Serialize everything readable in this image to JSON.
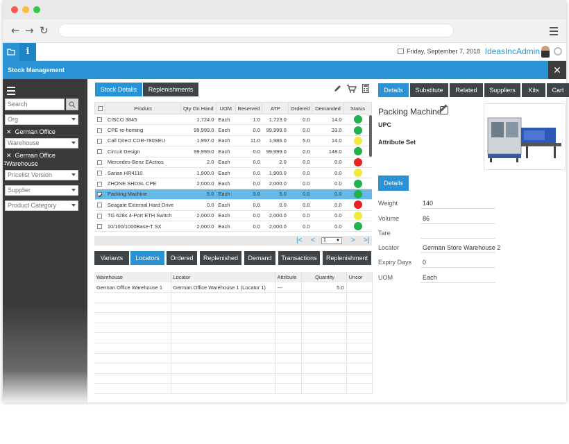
{
  "header": {
    "date": "Friday, September 7, 2018",
    "user": "IdeasIncAdmin",
    "app_tab_info": "i"
  },
  "window_title": "Stock Management",
  "close_label": "✕",
  "sidebar": {
    "search_placeholder": "Search",
    "org_placeholder": "Org",
    "org_selected": "German Office",
    "warehouse_placeholder": "Warehouse",
    "warehouse_selected": "German Office Warehouse",
    "warehouse_count": "1",
    "pricelist_placeholder": "Pricelist Version",
    "supplier_placeholder": "Supplier",
    "category_placeholder": "Product Category"
  },
  "top_tabs": [
    "Stock Details",
    "Replenishments"
  ],
  "stock_grid": {
    "columns": [
      "Product",
      "Qty On Hand",
      "UOM",
      "Reserved",
      "ATP",
      "Ordered",
      "Demanded",
      "Status"
    ],
    "rows": [
      {
        "product": "CISCO 3845",
        "qty": "1,724.0",
        "uom": "Each",
        "reserved": "1.0",
        "atp": "1,723.0",
        "ordered": "0.0",
        "demanded": "14.0",
        "status": "#22b14c"
      },
      {
        "product": "CPE re-homing",
        "qty": "99,999.0",
        "uom": "Each",
        "reserved": "0.0",
        "atp": "99,999.0",
        "ordered": "0.0",
        "demanded": "33.0",
        "status": "#22b14c"
      },
      {
        "product": "Call Direct CDR-780SEU",
        "qty": "1,997.0",
        "uom": "Each",
        "reserved": "11.0",
        "atp": "1,986.0",
        "ordered": "5.0",
        "demanded": "14.0",
        "status": "#f2e940"
      },
      {
        "product": "Circuit Design",
        "qty": "99,999.0",
        "uom": "Each",
        "reserved": "0.0",
        "atp": "99,999.0",
        "ordered": "0.0",
        "demanded": "148.0",
        "status": "#22b14c"
      },
      {
        "product": "Mercedes-Benz EActros",
        "qty": "2.0",
        "uom": "Each",
        "reserved": "0.0",
        "atp": "2.0",
        "ordered": "0.0",
        "demanded": "0.0",
        "status": "#e8231f"
      },
      {
        "product": "Sarian HR4110",
        "qty": "1,900.0",
        "uom": "Each",
        "reserved": "0.0",
        "atp": "1,900.0",
        "ordered": "0.0",
        "demanded": "0.0",
        "status": "#f2e940"
      },
      {
        "product": "ZHONE SHDSL CPE",
        "qty": "2,000.0",
        "uom": "Each",
        "reserved": "0.0",
        "atp": "2,000.0",
        "ordered": "0.0",
        "demanded": "0.0",
        "status": "#22b14c"
      },
      {
        "product": "Packing Machine",
        "qty": "5.0",
        "uom": "Each",
        "reserved": "0.0",
        "atp": "5.0",
        "ordered": "0.0",
        "demanded": "0.0",
        "status": "#22b14c",
        "selected": true
      },
      {
        "product": "Seagate External Hard Drive",
        "qty": "0.0",
        "uom": "Each",
        "reserved": "0.0",
        "atp": "0.0",
        "ordered": "0.0",
        "demanded": "0.0",
        "status": "#e8231f"
      },
      {
        "product": "TG 628s 4-Port ETH Switch",
        "qty": "2,000.0",
        "uom": "Each",
        "reserved": "0.0",
        "atp": "2,000.0",
        "ordered": "0.0",
        "demanded": "0.0",
        "status": "#f2e940"
      },
      {
        "product": "10/100/1000Base-T SX",
        "qty": "2,000.0",
        "uom": "Each",
        "reserved": "0.0",
        "atp": "2,000.0",
        "ordered": "0.0",
        "demanded": "0.0",
        "status": "#22b14c"
      }
    ]
  },
  "pager": {
    "page": "1"
  },
  "bottom_tabs": [
    "Variants",
    "Locators",
    "Ordered",
    "Replenished",
    "Demand",
    "Transactions",
    "Replenishment"
  ],
  "locator_grid": {
    "columns": [
      "Warehouse",
      "Locator",
      "Attribute",
      "Quantity",
      "Uncor"
    ],
    "rows": [
      {
        "warehouse": "German Office Warehouse 1",
        "locator": "German Office Warehouse 1 (Locator 1)",
        "attribute": "---",
        "quantity": "5.0",
        "uncor": ""
      }
    ]
  },
  "right_tabs": [
    "Details",
    "Substitute",
    "Related",
    "Suppliers",
    "Kits",
    "Cart"
  ],
  "product": {
    "name": "Packing Machine",
    "upc_label": "UPC",
    "attribute_set_label": "Attribute Set",
    "details_button": "Details",
    "fields": [
      {
        "label": "Weight",
        "value": "140"
      },
      {
        "label": "Volume",
        "value": "86"
      },
      {
        "label": "Tare",
        "value": ""
      },
      {
        "label": "Locator",
        "value": "German Store Warehouse 2"
      },
      {
        "label": "Expiry Days",
        "value": "0"
      },
      {
        "label": "UOM",
        "value": "Each"
      }
    ]
  },
  "colors": {
    "accent": "#2a93d5",
    "dark": "#3f4448",
    "selected_row": "#66b9e6"
  }
}
